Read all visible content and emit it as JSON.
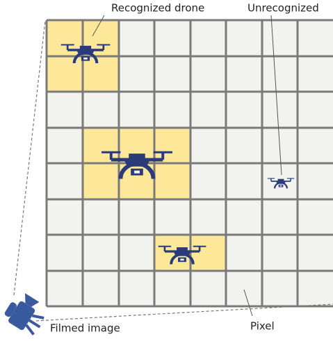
{
  "labels": {
    "recognized": "Recognized drone",
    "unrecognized": "Unrecognized",
    "pixel": "Pixel",
    "filmed_image": "Filmed image"
  }
}
